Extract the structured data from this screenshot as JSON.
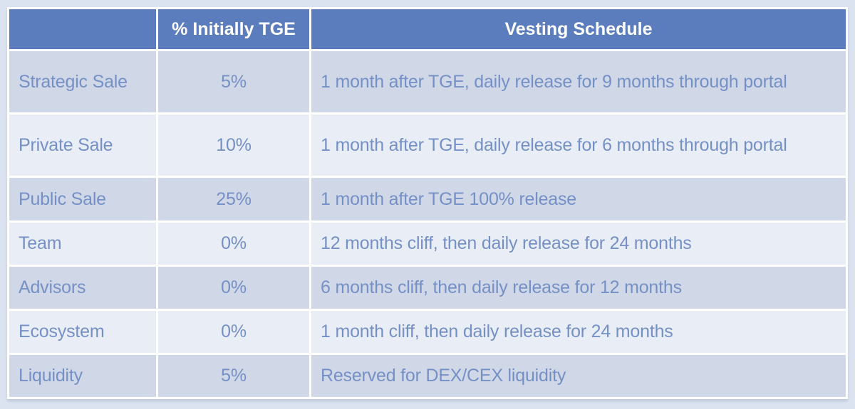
{
  "table": {
    "columns": [
      "",
      "% Initially TGE",
      "Vesting Schedule"
    ],
    "rows": [
      {
        "category": "Strategic Sale",
        "tge": "5%",
        "vesting": "1 month after TGE, daily release for 9 months through portal"
      },
      {
        "category": "Private Sale",
        "tge": "10%",
        "vesting": "1 month after TGE, daily release for 6 months through portal"
      },
      {
        "category": "Public Sale",
        "tge": "25%",
        "vesting": "1 month after TGE 100% release"
      },
      {
        "category": "Team",
        "tge": "0%",
        "vesting": "12 months cliff, then daily release for 24 months"
      },
      {
        "category": "Advisors",
        "tge": "0%",
        "vesting": "6 months cliff, then daily release for 12 months"
      },
      {
        "category": "Ecosystem",
        "tge": "0%",
        "vesting": "1 month cliff, then daily release for 24 months"
      },
      {
        "category": "Liquidity",
        "tge": "5%",
        "vesting": "Reserved for DEX/CEX liquidity"
      }
    ]
  },
  "colors": {
    "page_bg": "#dce3f0",
    "header_bg": "#5b7dbd",
    "header_text": "#ffffff",
    "row_dark": "#d0d8e7",
    "row_light": "#e9edf6",
    "body_text": "#7590c6",
    "border": "#ffffff"
  }
}
